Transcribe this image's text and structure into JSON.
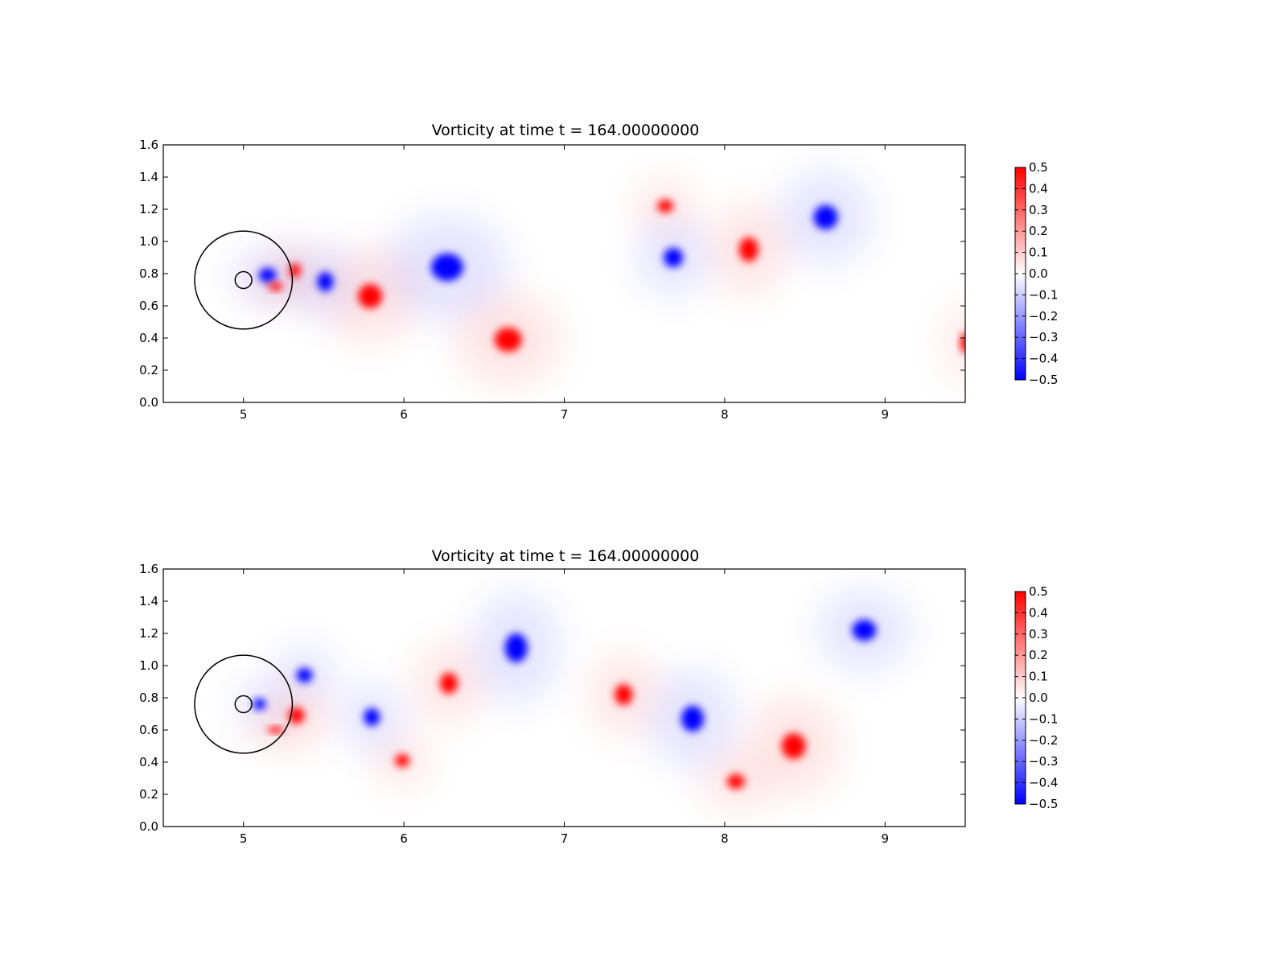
{
  "chart_data": [
    {
      "type": "heatmap",
      "title": "Vorticity at time t =   164.00000000",
      "xlabel": "",
      "ylabel": "",
      "xlim": [
        4.5,
        9.5
      ],
      "ylim": [
        0.0,
        1.6
      ],
      "xticks": [
        "5",
        "6",
        "7",
        "8",
        "9"
      ],
      "yticks": [
        "0.0",
        "0.2",
        "0.4",
        "0.6",
        "0.8",
        "1.0",
        "1.2",
        "1.4",
        "1.6"
      ],
      "colorbar": {
        "range": [
          -0.5,
          0.5
        ],
        "colormap": "bwr",
        "low_color": "#0000ff",
        "mid_color": "#ffffff",
        "high_color": "#ff0000",
        "ticks": [
          "0.5",
          "0.4",
          "0.3",
          "0.2",
          "0.1",
          "0.0",
          "−0.1",
          "−0.2",
          "−0.3",
          "−0.4",
          "−0.5"
        ]
      },
      "circles": [
        {
          "cx": 5.0,
          "cy": 0.76,
          "r": 0.35
        },
        {
          "cx": 5.0,
          "cy": 0.76,
          "r": 0.06
        }
      ],
      "vortices": [
        {
          "x": 5.15,
          "y": 0.79,
          "rx": 0.11,
          "ry": 0.09,
          "value": -0.5
        },
        {
          "x": 5.2,
          "y": 0.72,
          "rx": 0.09,
          "ry": 0.05,
          "value": 0.5
        },
        {
          "x": 5.32,
          "y": 0.82,
          "rx": 0.07,
          "ry": 0.09,
          "value": 0.5
        },
        {
          "x": 5.51,
          "y": 0.75,
          "rx": 0.1,
          "ry": 0.12,
          "value": -0.5
        },
        {
          "x": 5.79,
          "y": 0.66,
          "rx": 0.15,
          "ry": 0.15,
          "value": 0.5
        },
        {
          "x": 6.27,
          "y": 0.84,
          "rx": 0.2,
          "ry": 0.17,
          "value": -0.5
        },
        {
          "x": 6.65,
          "y": 0.39,
          "rx": 0.17,
          "ry": 0.15,
          "value": 0.5
        },
        {
          "x": 7.63,
          "y": 1.22,
          "rx": 0.1,
          "ry": 0.08,
          "value": 0.5
        },
        {
          "x": 7.68,
          "y": 0.9,
          "rx": 0.12,
          "ry": 0.12,
          "value": -0.5
        },
        {
          "x": 8.15,
          "y": 0.95,
          "rx": 0.12,
          "ry": 0.15,
          "value": 0.5
        },
        {
          "x": 8.63,
          "y": 1.15,
          "rx": 0.15,
          "ry": 0.15,
          "value": -0.5
        },
        {
          "x": 9.5,
          "y": 0.37,
          "rx": 0.06,
          "ry": 0.13,
          "value": 0.5
        }
      ]
    },
    {
      "type": "heatmap",
      "title": "Vorticity at time t =   164.00000000",
      "xlabel": "",
      "ylabel": "",
      "xlim": [
        4.5,
        9.5
      ],
      "ylim": [
        0.0,
        1.6
      ],
      "xticks": [
        "5",
        "6",
        "7",
        "8",
        "9"
      ],
      "yticks": [
        "0.0",
        "0.2",
        "0.4",
        "0.6",
        "0.8",
        "1.0",
        "1.2",
        "1.4",
        "1.6"
      ],
      "colorbar": {
        "range": [
          -0.5,
          0.5
        ],
        "colormap": "bwr",
        "low_color": "#0000ff",
        "mid_color": "#ffffff",
        "high_color": "#ff0000",
        "ticks": [
          "0.5",
          "0.4",
          "0.3",
          "0.2",
          "0.1",
          "0.0",
          "−0.1",
          "−0.2",
          "−0.3",
          "−0.4",
          "−0.5"
        ]
      },
      "circles": [
        {
          "cx": 5.0,
          "cy": 0.76,
          "r": 0.35
        },
        {
          "cx": 5.0,
          "cy": 0.76,
          "r": 0.06
        }
      ],
      "vortices": [
        {
          "x": 5.1,
          "y": 0.76,
          "rx": 0.08,
          "ry": 0.07,
          "value": -0.5
        },
        {
          "x": 5.2,
          "y": 0.6,
          "rx": 0.1,
          "ry": 0.04,
          "value": 0.5
        },
        {
          "x": 5.38,
          "y": 0.94,
          "rx": 0.1,
          "ry": 0.09,
          "value": -0.5
        },
        {
          "x": 5.33,
          "y": 0.69,
          "rx": 0.1,
          "ry": 0.1,
          "value": 0.5
        },
        {
          "x": 5.8,
          "y": 0.68,
          "rx": 0.1,
          "ry": 0.11,
          "value": -0.5
        },
        {
          "x": 5.99,
          "y": 0.41,
          "rx": 0.09,
          "ry": 0.08,
          "value": 0.5
        },
        {
          "x": 6.28,
          "y": 0.89,
          "rx": 0.11,
          "ry": 0.13,
          "value": 0.5
        },
        {
          "x": 6.7,
          "y": 1.11,
          "rx": 0.14,
          "ry": 0.18,
          "value": -0.5
        },
        {
          "x": 7.37,
          "y": 0.82,
          "rx": 0.11,
          "ry": 0.13,
          "value": 0.5
        },
        {
          "x": 7.8,
          "y": 0.67,
          "rx": 0.14,
          "ry": 0.16,
          "value": -0.5
        },
        {
          "x": 8.07,
          "y": 0.28,
          "rx": 0.11,
          "ry": 0.09,
          "value": 0.5
        },
        {
          "x": 8.43,
          "y": 0.5,
          "rx": 0.15,
          "ry": 0.16,
          "value": 0.5
        },
        {
          "x": 8.87,
          "y": 1.22,
          "rx": 0.15,
          "ry": 0.13,
          "value": -0.5
        }
      ]
    }
  ]
}
